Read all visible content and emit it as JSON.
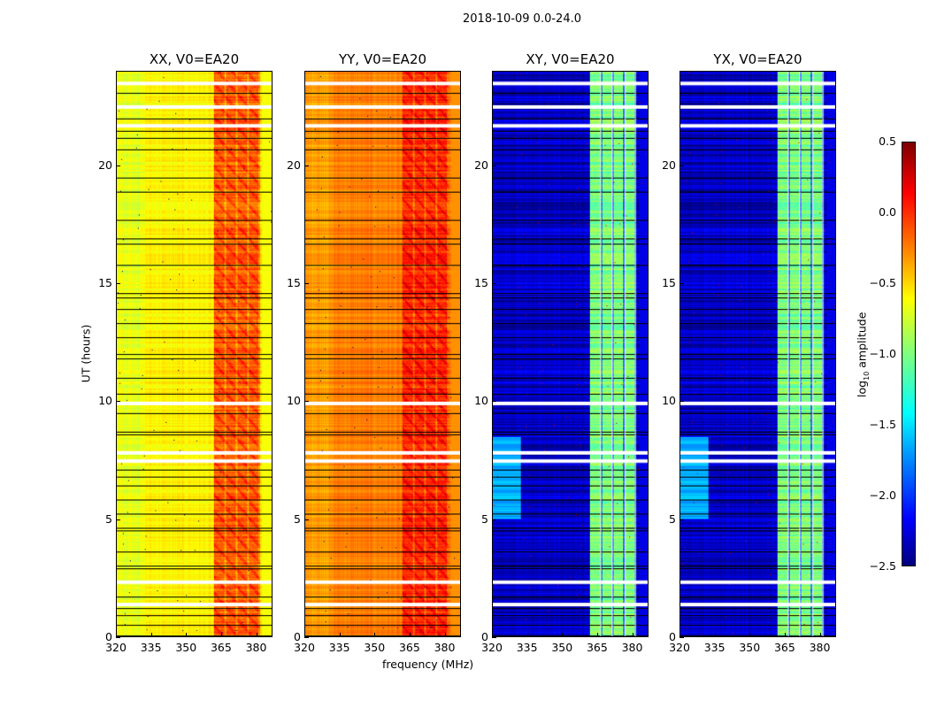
{
  "chart_data": {
    "type": "heatmap",
    "title": "2018-10-09 0.0-24.0",
    "xlabel": "frequency (MHz)",
    "ylabel": "UT (hours)",
    "xlim": [
      320,
      387
    ],
    "ylim": [
      0,
      24
    ],
    "xticks": [
      320,
      335,
      350,
      365,
      380
    ],
    "yticks": [
      0,
      5,
      10,
      15,
      20
    ],
    "panels": [
      {
        "title": "XX, V0=EA20",
        "baseline": -0.6,
        "band_level": -0.15,
        "band_gap_level": -0.35
      },
      {
        "title": "YY, V0=EA20",
        "baseline": -0.25,
        "band_level": 0.0,
        "band_gap_level": -0.2
      },
      {
        "title": "XY, V0=EA20",
        "baseline": -2.3,
        "band_level": -1.0,
        "band_gap_level": -1.9
      },
      {
        "title": "YX, V0=EA20",
        "baseline": -2.3,
        "band_level": -1.0,
        "band_gap_level": -1.9
      }
    ],
    "rfi_band_mhz": [
      362,
      382
    ],
    "flagged_hours": [
      23.5,
      22.5,
      21.7,
      9.9,
      7.8,
      7.45,
      2.3,
      1.35
    ],
    "boundary_hours": [
      23.1,
      22.0,
      21.5,
      21.2,
      20.7,
      19.5,
      18.9,
      17.7,
      16.9,
      16.7,
      15.8,
      14.6,
      14.4,
      13.9,
      13.3,
      12.7,
      12.0,
      11.8,
      11.0,
      10.3,
      9.5,
      8.7,
      8.6,
      7.1,
      6.8,
      6.4,
      5.8,
      5.2,
      4.6,
      4.5,
      3.6,
      3.0,
      2.9,
      1.7,
      1.2,
      0.9,
      0.5,
      0.05
    ],
    "colorbar": {
      "label": "log10 amplitude",
      "label_main": "log",
      "label_sub": "10",
      "label_rest": " amplitude",
      "range": [
        -2.5,
        0.5
      ],
      "ticks": [
        "0.5",
        "0.0",
        "−0.5",
        "−1.0",
        "−1.5",
        "−2.0",
        "−2.5"
      ],
      "tick_values": [
        0.5,
        0.0,
        -0.5,
        -1.0,
        -1.5,
        -2.0,
        -2.5
      ],
      "colormap": "jet"
    }
  }
}
